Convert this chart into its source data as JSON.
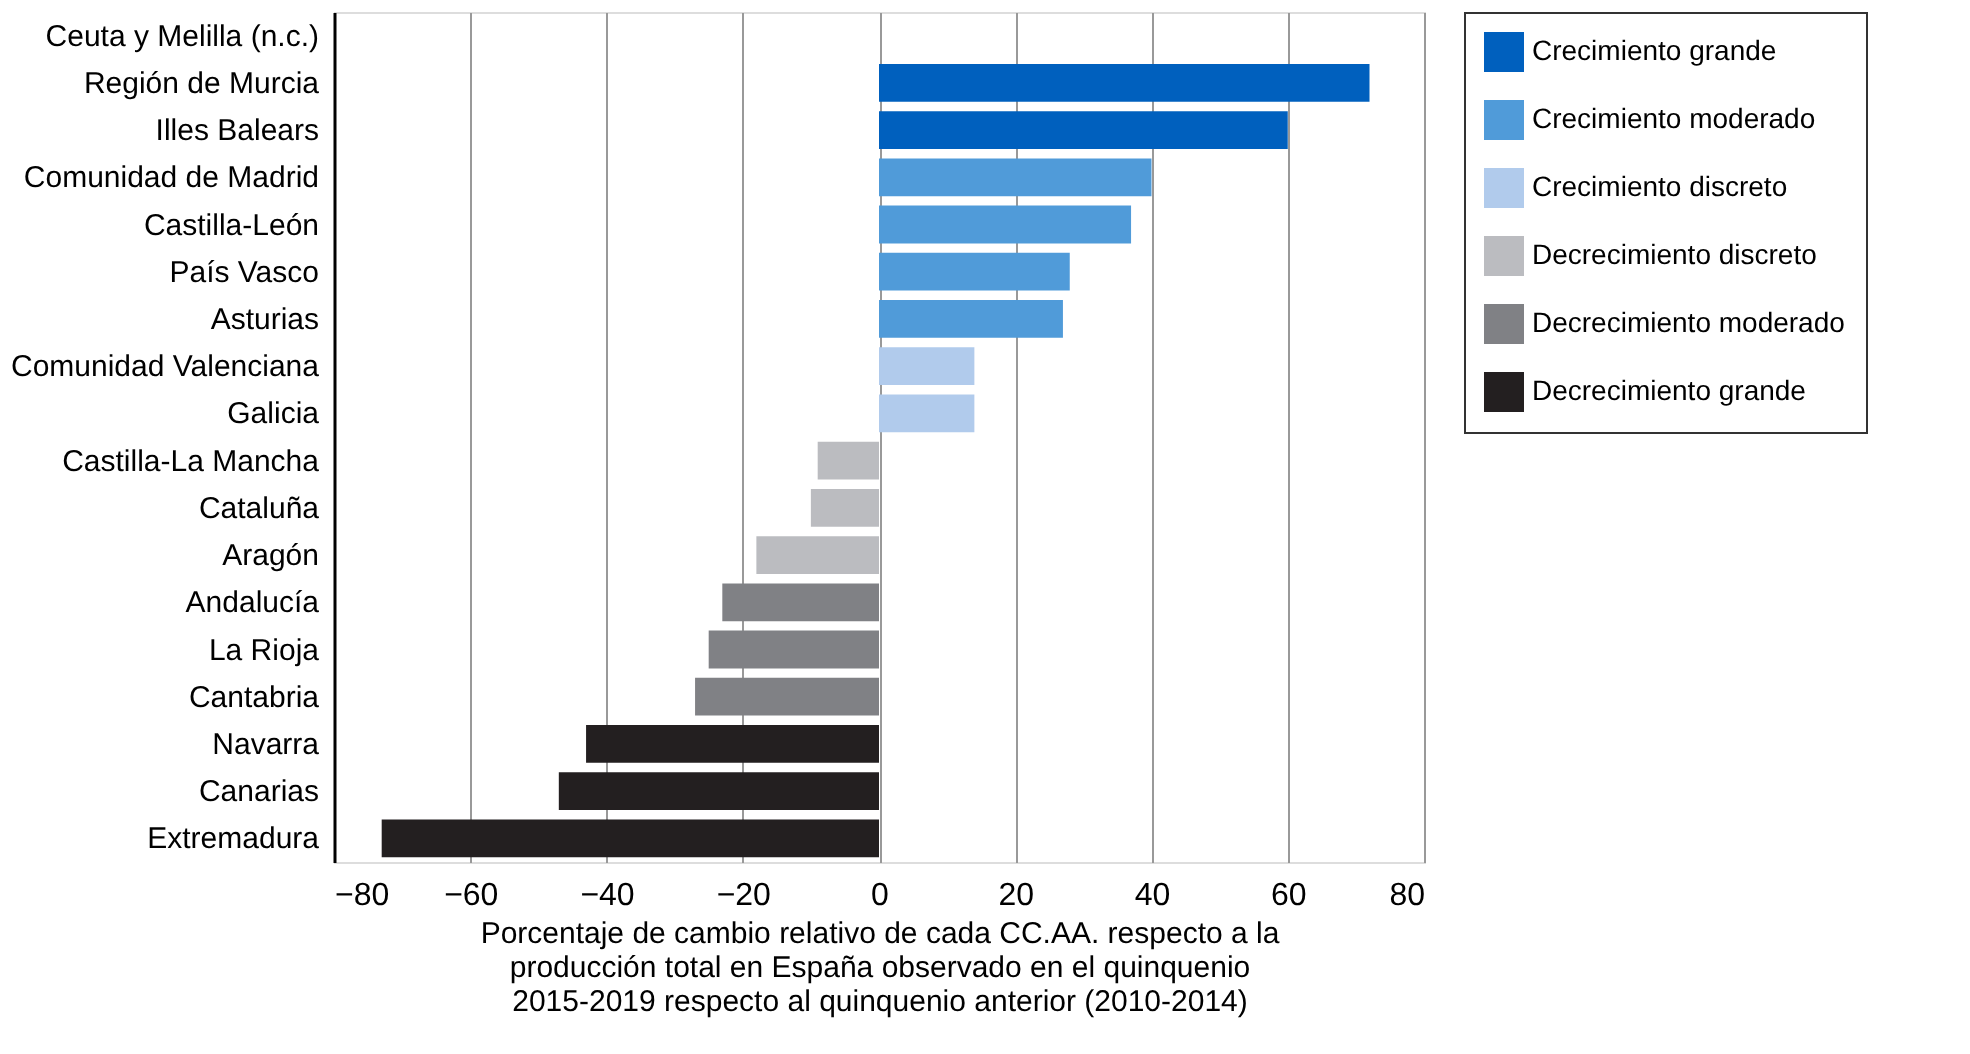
{
  "chart_data": {
    "type": "bar",
    "orientation": "horizontal",
    "xlabel": "Porcentaje de cambio relativo de cada CC.AA. respecto a la producción total en España observado en el quinquenio 2015-2019 respecto al quinquenio anterior (2010-2014)",
    "categories": [
      "Ceuta y Melilla (n.c.)",
      "Región de Murcia",
      "Illes Balears",
      "Comunidad de Madrid",
      "Castilla-León",
      "País Vasco",
      "Asturias",
      "Comunidad Valenciana",
      "Galicia",
      "Castilla-La Mancha",
      "Cataluña",
      "Aragón",
      "Andalucía",
      "La Rioja",
      "Cantabria",
      "Navarra",
      "Canarias",
      "Extremadura"
    ],
    "series": [
      {
        "name": "Crecimiento grande",
        "color": "#0060be",
        "values": [
          null,
          72,
          60,
          null,
          null,
          null,
          null,
          null,
          null,
          null,
          null,
          null,
          null,
          null,
          null,
          null,
          null,
          null
        ]
      },
      {
        "name": "Crecimiento moderado",
        "color": "#509bd9",
        "values": [
          null,
          null,
          null,
          40,
          37,
          28,
          27,
          null,
          null,
          null,
          null,
          null,
          null,
          null,
          null,
          null,
          null,
          null
        ]
      },
      {
        "name": "Crecimiento discreto",
        "color": "#b1cbec",
        "values": [
          null,
          null,
          null,
          null,
          null,
          null,
          null,
          14,
          14,
          null,
          null,
          null,
          null,
          null,
          null,
          null,
          null,
          null
        ]
      },
      {
        "name": "Decrecimiento discreto",
        "color": "#bbbcc0",
        "values": [
          null,
          null,
          null,
          null,
          null,
          null,
          null,
          null,
          null,
          -9,
          -10,
          -18,
          null,
          null,
          null,
          null,
          null,
          null
        ]
      },
      {
        "name": "Decrecimiento moderado",
        "color": "#808185",
        "values": [
          null,
          null,
          null,
          null,
          null,
          null,
          null,
          null,
          null,
          null,
          null,
          null,
          -23,
          -25,
          -27,
          null,
          null,
          null
        ]
      },
      {
        "name": "Decrecimiento grande",
        "color": "#231f20",
        "values": [
          null,
          null,
          null,
          null,
          null,
          null,
          null,
          null,
          null,
          null,
          null,
          null,
          null,
          null,
          null,
          -43,
          -47,
          -73
        ]
      }
    ],
    "xlim": [
      -80,
      80
    ],
    "xticks": [
      -80,
      -60,
      -40,
      -20,
      0,
      20,
      40,
      60,
      80
    ],
    "grid": "x",
    "legend": "right"
  }
}
